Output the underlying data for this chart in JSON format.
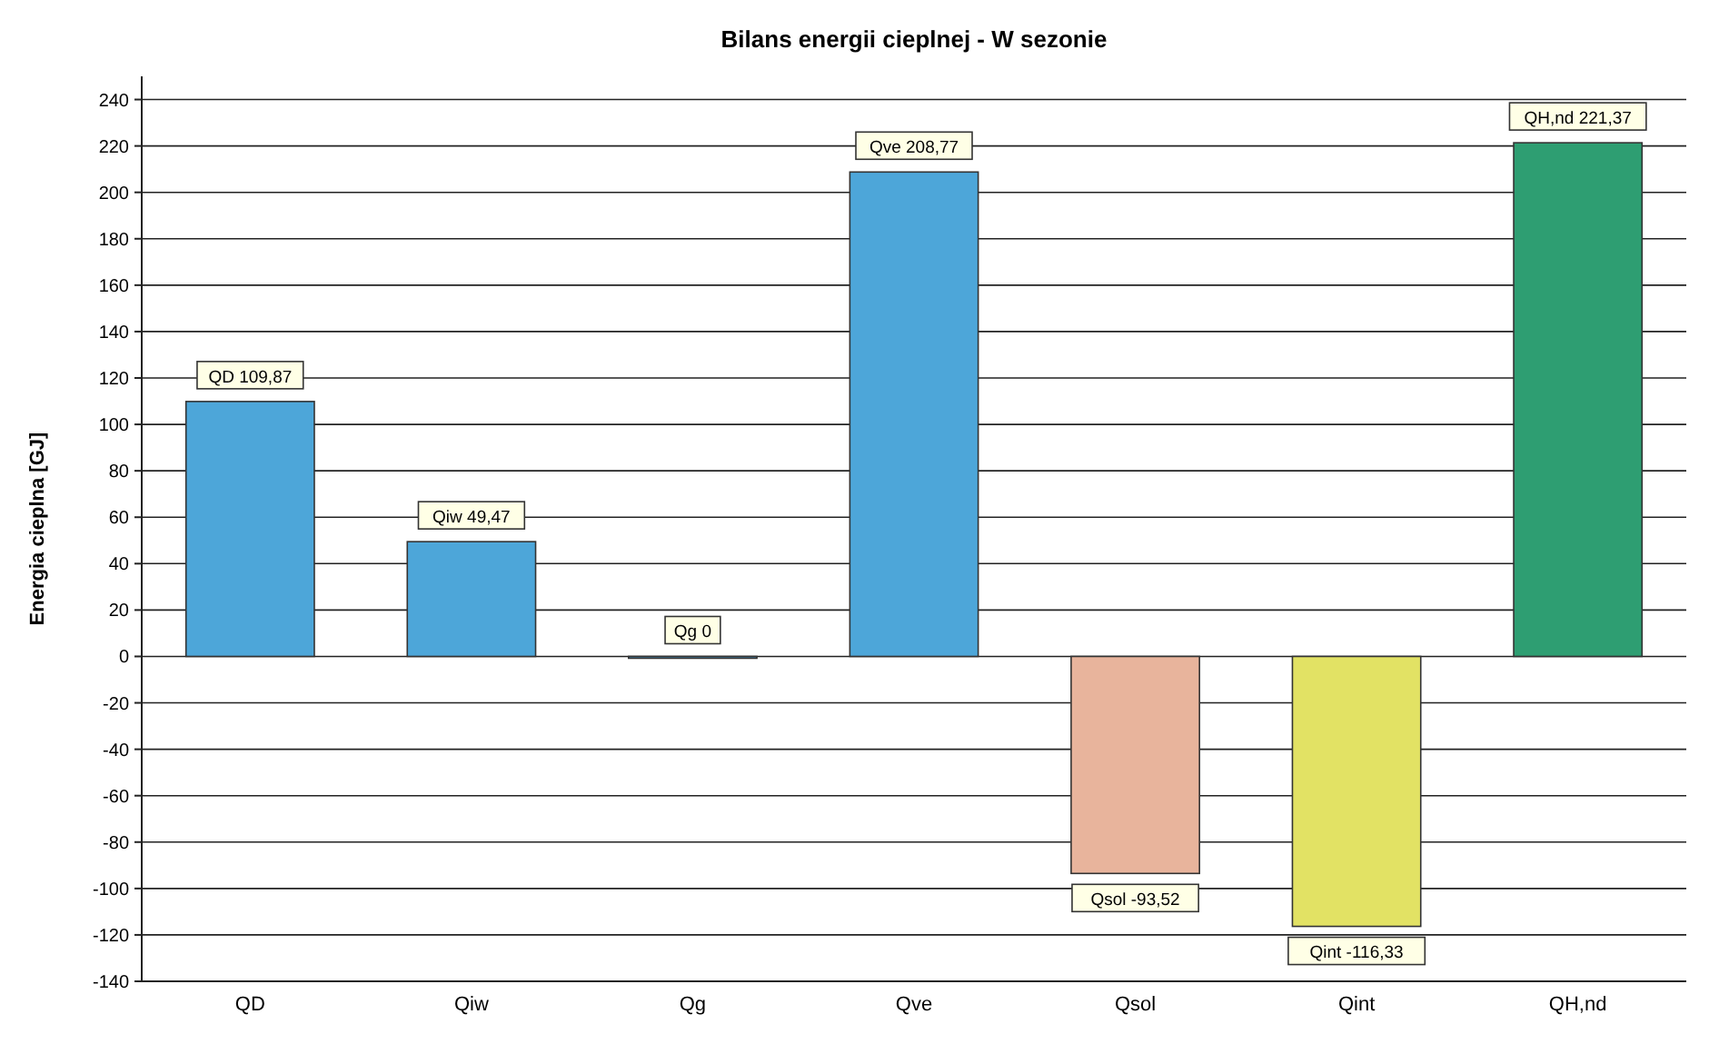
{
  "chart_data": {
    "type": "bar",
    "title": "Bilans energii cieplnej - W sezonie",
    "ylabel": "Energia cieplna [GJ]",
    "categories": [
      "QD",
      "Qiw",
      "Qg",
      "Qve",
      "Qsol",
      "Qint",
      "QH,nd"
    ],
    "values": [
      109.87,
      49.47,
      0,
      208.77,
      -93.52,
      -116.33,
      221.37
    ],
    "colors": [
      "#4da6d9",
      "#4da6d9",
      "#4da6d9",
      "#4da6d9",
      "#e8b49c",
      "#e2e264",
      "#2e9e72"
    ],
    "value_labels": [
      "QD 109,87",
      "Qiw 49,47",
      "Qg 0",
      "Qve 208,77",
      "Qsol -93,52",
      "Qint -116,33",
      "QH,nd 221,37"
    ],
    "ylim": [
      -140,
      250
    ],
    "yticks": [
      -140,
      -120,
      -100,
      -80,
      -60,
      -40,
      -20,
      0,
      20,
      40,
      60,
      80,
      100,
      120,
      140,
      160,
      180,
      200,
      220,
      240
    ],
    "grid": "y"
  }
}
